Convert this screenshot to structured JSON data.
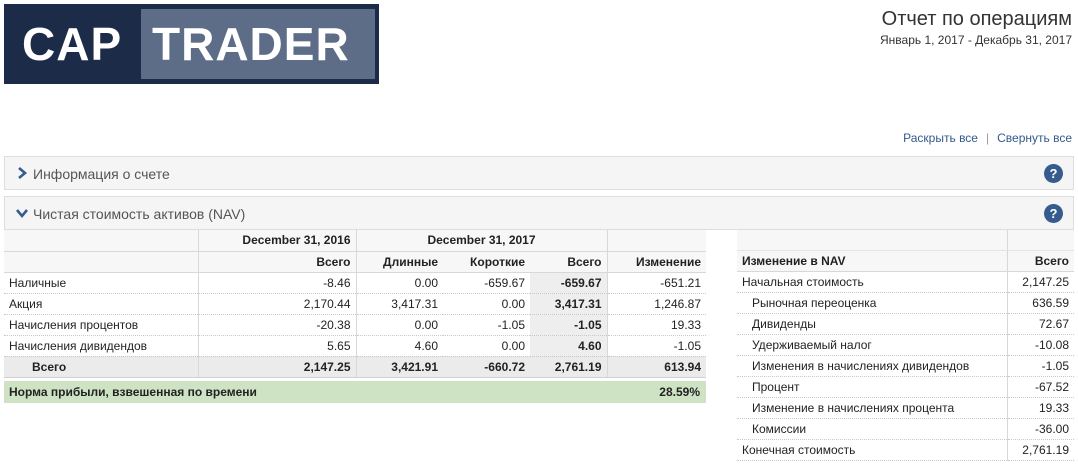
{
  "logo": {
    "part1": "CAP",
    "part2": "TRADER"
  },
  "header": {
    "title": "Отчет по операциям",
    "period": "Январь 1, 2017 - Декабрь 31, 2017"
  },
  "links": {
    "expand_all": "Раскрыть все",
    "separator": "|",
    "collapse_all": "Свернуть все"
  },
  "sections": [
    {
      "title": "Информация о счете",
      "help": "?"
    },
    {
      "title": "Чистая стоимость активов (NAV)",
      "help": "?"
    }
  ],
  "nav": {
    "group_headers": {
      "prev": "December 31, 2016",
      "curr": "December 31, 2017"
    },
    "columns": [
      "",
      "Всего",
      "Длинные",
      "Короткие",
      "Всего",
      "Изменение"
    ],
    "rows": [
      {
        "label": "Наличные",
        "prev_total": "-8.46",
        "long": "0.00",
        "short": "-659.67",
        "total": "-659.67",
        "change": "-651.21"
      },
      {
        "label": "Акция",
        "prev_total": "2,170.44",
        "long": "3,417.31",
        "short": "0.00",
        "total": "3,417.31",
        "change": "1,246.87"
      },
      {
        "label": "Начисления процентов",
        "prev_total": "-20.38",
        "long": "0.00",
        "short": "-1.05",
        "total": "-1.05",
        "change": "19.33"
      },
      {
        "label": "Начисления дивидендов",
        "prev_total": "5.65",
        "long": "4.60",
        "short": "0.00",
        "total": "4.60",
        "change": "-1.05"
      }
    ],
    "total": {
      "label": "Всего",
      "prev_total": "2,147.25",
      "long": "3,421.91",
      "short": "-660.72",
      "total": "2,761.19",
      "change": "613.94"
    },
    "twr": {
      "label": "Норма прибыли, взвешенная по времени",
      "value": "28.59%"
    }
  },
  "change_nav": {
    "header_label": "Изменение в NAV",
    "header_total": "Всего",
    "rows": [
      {
        "label": "Начальная стоимость",
        "value": "2,147.25"
      },
      {
        "label": "Рыночная переоценка",
        "value": "636.59"
      },
      {
        "label": "Дивиденды",
        "value": "72.67"
      },
      {
        "label": "Удерживаемый налог",
        "value": "-10.08"
      },
      {
        "label": "Изменения в начислениях дивидендов",
        "value": "-1.05"
      },
      {
        "label": "Процент",
        "value": "-67.52"
      },
      {
        "label": "Изменение в начислениях процента",
        "value": "19.33"
      },
      {
        "label": "Комиссии",
        "value": "-36.00"
      },
      {
        "label": "Конечная стоимость",
        "value": "2,761.19"
      }
    ]
  }
}
